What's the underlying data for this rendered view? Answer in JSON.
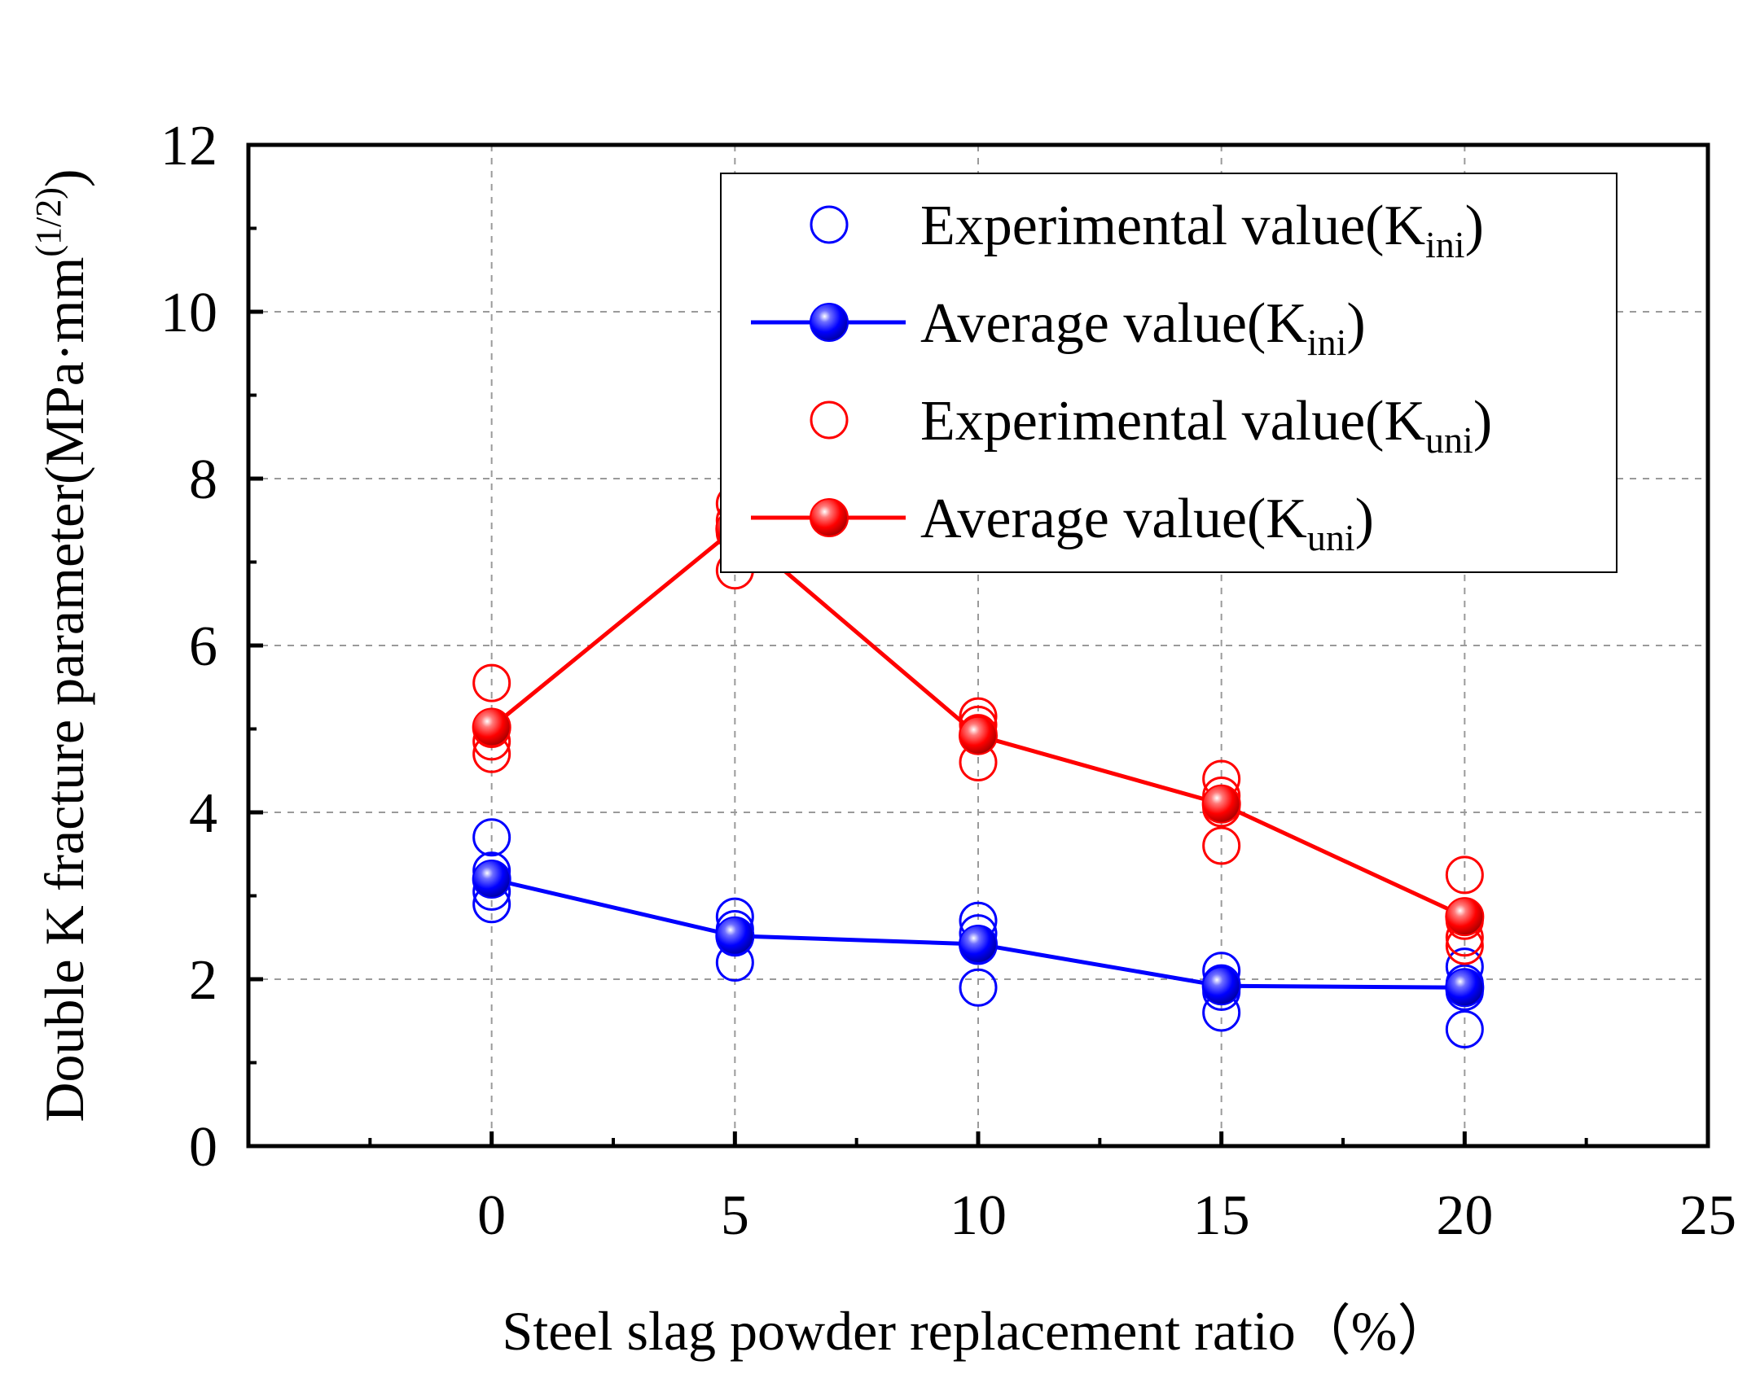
{
  "chart_data": {
    "type": "scatter",
    "xlabel": "Steel slag powder replacement ratio（%）",
    "ylabel": {
      "main": "Double K fracture parameter(MPa·mm",
      "sup": "(1/2)",
      "close": ")"
    },
    "xlim": [
      -5,
      25
    ],
    "ylim": [
      0,
      12
    ],
    "xticks": [
      "0",
      "5",
      "10",
      "15",
      "20",
      "25"
    ],
    "xtick_values": [
      0,
      5,
      10,
      15,
      20,
      25
    ],
    "yticks": [
      "0",
      "2",
      "4",
      "6",
      "8",
      "10",
      "12"
    ],
    "ytick_values": [
      0,
      2,
      4,
      6,
      8,
      10,
      12
    ],
    "grid": true,
    "legend_position": "top-right",
    "series": [
      {
        "name": "Experimental value(K",
        "sub": "ini",
        "suffix": ")",
        "kind": "experimental",
        "color": "#0000ff",
        "points": [
          [
            0,
            3.7
          ],
          [
            0,
            3.3
          ],
          [
            0,
            3.05
          ],
          [
            0,
            2.9
          ],
          [
            5,
            2.75
          ],
          [
            5,
            2.6
          ],
          [
            5,
            2.5
          ],
          [
            5,
            2.2
          ],
          [
            10,
            2.7
          ],
          [
            10,
            2.55
          ],
          [
            10,
            2.4
          ],
          [
            10,
            1.9
          ],
          [
            15,
            2.1
          ],
          [
            15,
            1.95
          ],
          [
            15,
            1.85
          ],
          [
            15,
            1.6
          ],
          [
            20,
            2.15
          ],
          [
            20,
            1.95
          ],
          [
            20,
            1.85
          ],
          [
            20,
            1.4
          ]
        ]
      },
      {
        "name": "Average value(K",
        "sub": "ini",
        "suffix": ")",
        "kind": "average",
        "color": "#0000ff",
        "x": [
          0,
          5,
          10,
          15,
          20
        ],
        "y": [
          3.2,
          2.52,
          2.42,
          1.92,
          1.9
        ]
      },
      {
        "name": "Experimental value(K",
        "sub": "uni",
        "suffix": ")",
        "kind": "experimental",
        "color": "#ff0000",
        "points": [
          [
            0,
            5.55
          ],
          [
            0,
            5.0
          ],
          [
            0,
            4.85
          ],
          [
            0,
            4.7
          ],
          [
            5,
            7.7
          ],
          [
            5,
            7.5
          ],
          [
            5,
            7.35
          ],
          [
            5,
            6.9
          ],
          [
            10,
            5.15
          ],
          [
            10,
            5.05
          ],
          [
            10,
            4.95
          ],
          [
            10,
            4.6
          ],
          [
            15,
            4.4
          ],
          [
            15,
            4.2
          ],
          [
            15,
            4.05
          ],
          [
            15,
            3.6
          ],
          [
            20,
            3.25
          ],
          [
            20,
            2.7
          ],
          [
            20,
            2.5
          ],
          [
            20,
            2.4
          ]
        ]
      },
      {
        "name": "Average value(K",
        "sub": "uni",
        "suffix": ")",
        "kind": "average",
        "color": "#ff0000",
        "x": [
          0,
          5,
          10,
          15,
          20
        ],
        "y": [
          5.02,
          7.4,
          4.92,
          4.1,
          2.75
        ]
      }
    ]
  }
}
